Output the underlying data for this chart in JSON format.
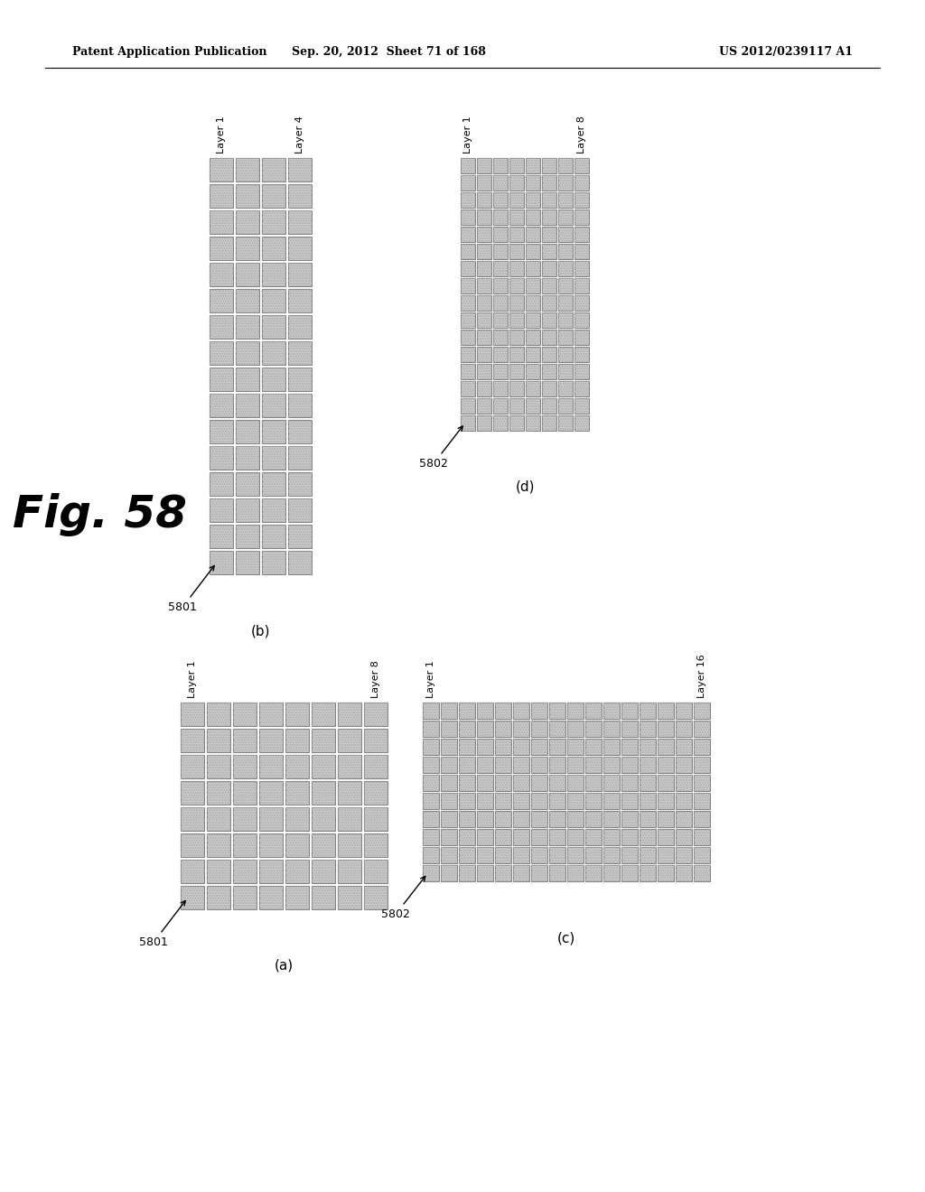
{
  "header_left": "Patent Application Publication",
  "header_mid": "Sep. 20, 2012  Sheet 71 of 168",
  "header_right": "US 2012/0239117 A1",
  "fig_label": "Fig. 58",
  "background_color": "#ffffff",
  "subplots": {
    "b": {
      "cols": 4,
      "rows": 16,
      "layer_left": "Layer 1",
      "layer_right": "Layer 4",
      "ref": "5801",
      "sublabel": "(b)"
    },
    "d": {
      "cols": 8,
      "rows": 16,
      "layer_left": "Layer 1",
      "layer_right": "Layer 8",
      "ref": "5802",
      "sublabel": "(d)"
    },
    "a": {
      "cols": 8,
      "rows": 8,
      "layer_left": "Layer 1",
      "layer_right": "Layer 8",
      "ref": "5801",
      "sublabel": "(a)"
    },
    "c": {
      "cols": 16,
      "rows": 10,
      "layer_left": "Layer 1",
      "layer_right": "Layer 16",
      "ref": "5802",
      "sublabel": "(c)"
    }
  },
  "face_color": "#cccccc",
  "edge_color": "#555555",
  "hatch_color": "#aaaaaa"
}
